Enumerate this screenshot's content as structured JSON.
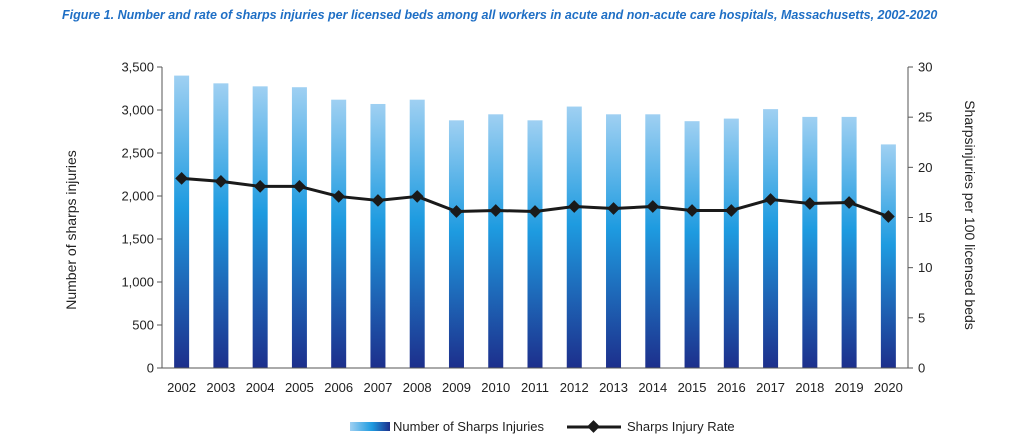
{
  "colors": {
    "title": "#1f6fc5",
    "bar_top": "#9fd0f2",
    "bar_mid": "#1e9be0",
    "bar_bottom": "#1d2f8c",
    "line": "#1a1a1a",
    "axis": "#555555"
  },
  "chart_data": {
    "type": "bar",
    "title": "Figure 1. Number and rate of sharps injuries per licensed beds among all workers in acute and non-acute care hospitals, Massachusetts, 2002-2020",
    "categories": [
      "2002",
      "2003",
      "2004",
      "2005",
      "2006",
      "2007",
      "2008",
      "2009",
      "2010",
      "2011",
      "2012",
      "2013",
      "2014",
      "2015",
      "2016",
      "2017",
      "2018",
      "2019",
      "2020"
    ],
    "series": [
      {
        "name": "Number of Sharps Injuries",
        "type": "bar",
        "axis": "left",
        "values": [
          3400,
          3310,
          3275,
          3265,
          3120,
          3070,
          3120,
          2880,
          2950,
          2880,
          3040,
          2950,
          2950,
          2870,
          2900,
          3010,
          2920,
          2920,
          2600
        ]
      },
      {
        "name": "Sharps Injury Rate",
        "type": "line",
        "axis": "right",
        "values": [
          18.9,
          18.6,
          18.1,
          18.1,
          17.1,
          16.7,
          17.1,
          15.6,
          15.7,
          15.6,
          16.1,
          15.9,
          16.1,
          15.7,
          15.7,
          16.8,
          16.4,
          16.5,
          15.1
        ]
      }
    ],
    "ylabel": "Number of sharps injuries",
    "y2label": "Sharpsinjuries per 100 licensed beds",
    "ylim": [
      0,
      3500
    ],
    "y2lim": [
      0,
      30
    ],
    "yticks": [
      "0",
      "500",
      "1,000",
      "1,500",
      "2,000",
      "2,500",
      "3,000",
      "3,500"
    ],
    "y2ticks": [
      "0",
      "5",
      "10",
      "15",
      "20",
      "25",
      "30"
    ],
    "legend_position": "bottom",
    "grid": false
  }
}
